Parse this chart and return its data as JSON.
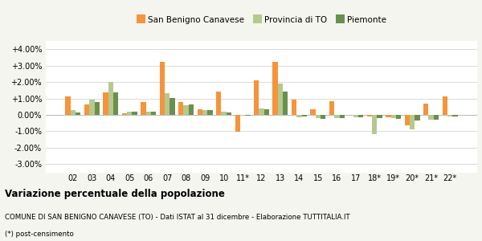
{
  "categories": [
    "02",
    "03",
    "04",
    "05",
    "06",
    "07",
    "08",
    "09",
    "10",
    "11*",
    "12",
    "13",
    "14",
    "15",
    "16",
    "17",
    "18*",
    "19*",
    "20*",
    "21*",
    "22*"
  ],
  "san_benigno": [
    0.011,
    0.0065,
    0.0135,
    0.001,
    0.008,
    0.0325,
    0.008,
    0.0035,
    0.014,
    -0.0105,
    0.021,
    0.0325,
    0.0095,
    0.0035,
    0.0085,
    0.0,
    -0.001,
    -0.0015,
    -0.0065,
    0.007,
    0.011
  ],
  "provincia_to": [
    0.003,
    0.0095,
    0.02,
    0.002,
    0.002,
    0.013,
    0.006,
    0.003,
    0.002,
    -0.0005,
    0.004,
    0.019,
    -0.0015,
    -0.002,
    -0.002,
    -0.0015,
    -0.012,
    -0.002,
    -0.009,
    -0.003,
    -0.001
  ],
  "piemonte": [
    0.0015,
    0.008,
    0.0135,
    0.002,
    0.002,
    0.0105,
    0.0065,
    0.003,
    0.0015,
    -0.0005,
    0.0035,
    0.014,
    -0.001,
    -0.0025,
    -0.002,
    -0.0015,
    -0.002,
    -0.0025,
    -0.0035,
    -0.003,
    -0.001
  ],
  "color_san_benigno": "#f5943a",
  "color_provincia": "#b5c98e",
  "color_piemonte": "#6b8f4e",
  "ylim": [
    -0.035,
    0.045
  ],
  "yticks": [
    -0.03,
    -0.02,
    -0.01,
    0.0,
    0.01,
    0.02,
    0.03,
    0.04
  ],
  "title_bold": "Variazione percentuale della popolazione",
  "subtitle": "COMUNE DI SAN BENIGNO CANAVESE (TO) - Dati ISTAT al 31 dicembre - Elaborazione TUTTITALIA.IT",
  "footnote": "(*) post-censimento",
  "legend_labels": [
    "San Benigno Canavese",
    "Provincia di TO",
    "Piemonte"
  ],
  "bg_color": "#f5f5f0",
  "plot_bg_color": "#ffffff"
}
